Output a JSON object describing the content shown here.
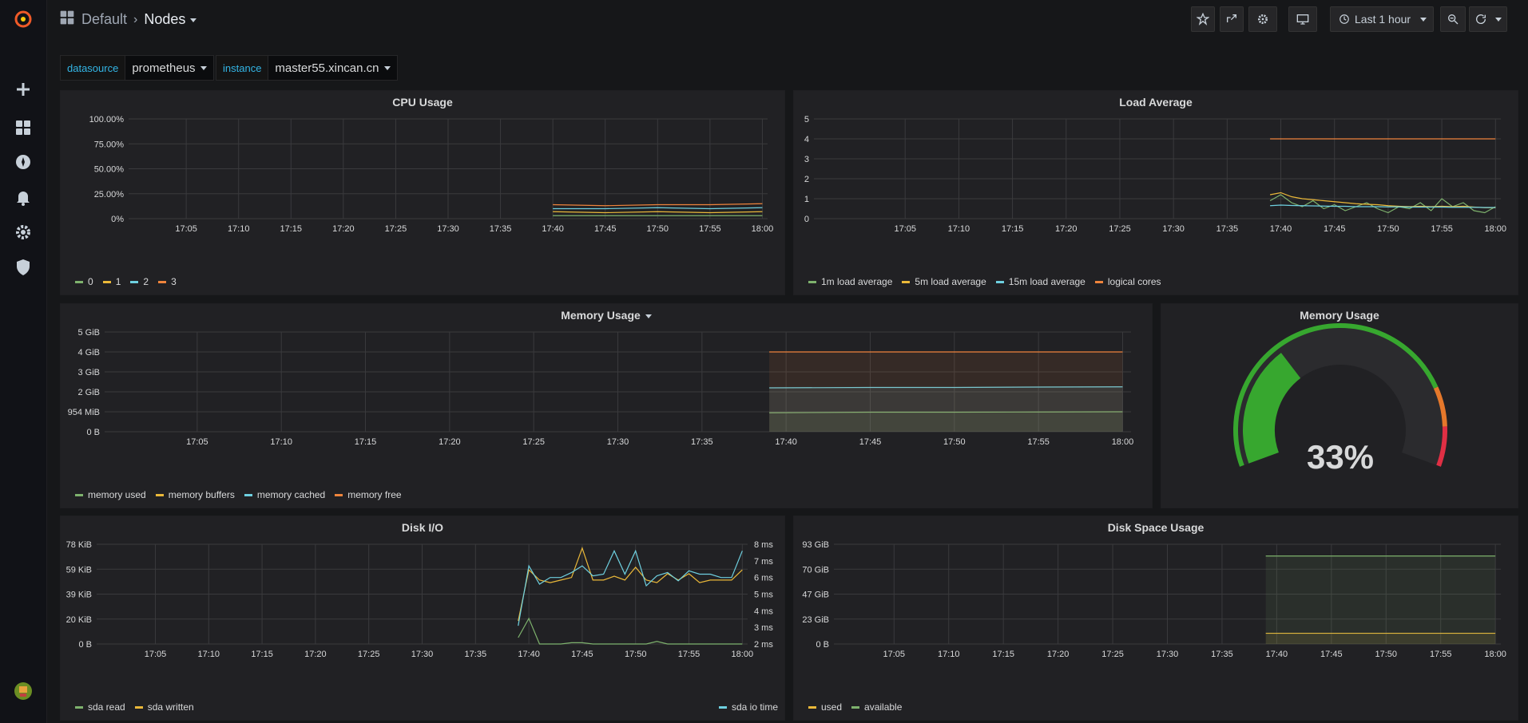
{
  "breadcrumb": {
    "folder": "Default",
    "dashboard": "Nodes"
  },
  "toolbar": {
    "time_range": "Last 1 hour"
  },
  "variables": [
    {
      "label": "datasource",
      "value": "prometheus"
    },
    {
      "label": "instance",
      "value": "master55.xincan.cn"
    }
  ],
  "colors": {
    "green": "#7eb26d",
    "yellow": "#eab839",
    "blue": "#6ed0e0",
    "orange": "#ef843c",
    "gauge_green": "#37a72f",
    "gauge_orange": "#e5782b",
    "gauge_red": "#e02f44"
  },
  "time_ticks": [
    "17:05",
    "17:10",
    "17:15",
    "17:20",
    "17:25",
    "17:30",
    "17:35",
    "17:40",
    "17:45",
    "17:50",
    "17:55",
    "18:00"
  ],
  "panels": {
    "cpu": {
      "title": "CPU Usage",
      "y_ticks": [
        "100.00%",
        "75.00%",
        "50.00%",
        "25.00%",
        "0%"
      ],
      "legend": [
        {
          "name": "0",
          "color": "#7eb26d"
        },
        {
          "name": "1",
          "color": "#eab839"
        },
        {
          "name": "2",
          "color": "#6ed0e0"
        },
        {
          "name": "3",
          "color": "#ef843c"
        }
      ]
    },
    "load": {
      "title": "Load Average",
      "y_ticks": [
        "5",
        "4",
        "3",
        "2",
        "1",
        "0"
      ],
      "legend": [
        {
          "name": "1m load average",
          "color": "#7eb26d"
        },
        {
          "name": "5m load average",
          "color": "#eab839"
        },
        {
          "name": "15m load average",
          "color": "#6ed0e0"
        },
        {
          "name": "logical cores",
          "color": "#ef843c"
        }
      ]
    },
    "memory": {
      "title": "Memory Usage",
      "y_ticks": [
        "5 GiB",
        "4 GiB",
        "3 GiB",
        "2 GiB",
        "954 MiB",
        "0 B"
      ],
      "legend": [
        {
          "name": "memory used",
          "color": "#7eb26d"
        },
        {
          "name": "memory buffers",
          "color": "#eab839"
        },
        {
          "name": "memory cached",
          "color": "#6ed0e0"
        },
        {
          "name": "memory free",
          "color": "#ef843c"
        }
      ]
    },
    "gauge": {
      "title": "Memory Usage",
      "value": "33%",
      "fraction": 0.33
    },
    "disk_io": {
      "title": "Disk I/O",
      "y_ticks": [
        "78 KiB",
        "59 KiB",
        "39 KiB",
        "20 KiB",
        "0 B"
      ],
      "y2_ticks": [
        "8 ms",
        "7 ms",
        "6 ms",
        "5 ms",
        "4 ms",
        "3 ms",
        "2 ms"
      ],
      "legend": [
        {
          "name": "sda read",
          "color": "#7eb26d"
        },
        {
          "name": "sda written",
          "color": "#eab839"
        }
      ],
      "legend_right": {
        "name": "sda io time",
        "color": "#6ed0e0"
      }
    },
    "disk_space": {
      "title": "Disk Space Usage",
      "y_ticks": [
        "93 GiB",
        "70 GiB",
        "47 GiB",
        "23 GiB",
        "0 B"
      ],
      "legend": [
        {
          "name": "used",
          "color": "#eab839"
        },
        {
          "name": "available",
          "color": "#7eb26d"
        }
      ]
    }
  },
  "chart_data": [
    {
      "type": "line",
      "title": "CPU Usage",
      "ylim": [
        0,
        100
      ],
      "x": [
        "17:40",
        "17:45",
        "17:50",
        "17:55",
        "18:00"
      ],
      "series": [
        {
          "name": "0",
          "values": [
            3,
            3,
            3,
            3,
            3
          ]
        },
        {
          "name": "1",
          "values": [
            7,
            6,
            7,
            6,
            7
          ]
        },
        {
          "name": "2",
          "values": [
            10,
            10,
            11,
            10,
            11
          ]
        },
        {
          "name": "3",
          "values": [
            14,
            13,
            14,
            14,
            15
          ]
        }
      ]
    },
    {
      "type": "line",
      "title": "Load Average",
      "ylim": [
        0,
        5
      ],
      "x": [
        "17:39",
        "17:40",
        "17:41",
        "17:42",
        "17:43",
        "17:44",
        "17:45",
        "17:46",
        "17:47",
        "17:48",
        "17:49",
        "17:50",
        "17:51",
        "17:52",
        "17:53",
        "17:54",
        "17:55",
        "17:56",
        "17:57",
        "17:58",
        "17:59",
        "18:00"
      ],
      "series": [
        {
          "name": "1m load average",
          "values": [
            0.9,
            1.2,
            0.8,
            0.6,
            0.9,
            0.5,
            0.7,
            0.4,
            0.6,
            0.8,
            0.5,
            0.3,
            0.6,
            0.5,
            0.8,
            0.4,
            1.0,
            0.6,
            0.8,
            0.4,
            0.3,
            0.6
          ]
        },
        {
          "name": "5m load average",
          "values": [
            1.2,
            1.3,
            1.1,
            1.0,
            0.95,
            0.9,
            0.85,
            0.8,
            0.75,
            0.72,
            0.7,
            0.65,
            0.62,
            0.6,
            0.62,
            0.6,
            0.62,
            0.6,
            0.62,
            0.58,
            0.55,
            0.55
          ]
        },
        {
          "name": "15m load average",
          "values": [
            0.65,
            0.68,
            0.66,
            0.65,
            0.64,
            0.63,
            0.62,
            0.62,
            0.6,
            0.6,
            0.6,
            0.59,
            0.59,
            0.58,
            0.58,
            0.58,
            0.58,
            0.57,
            0.57,
            0.57,
            0.56,
            0.56
          ]
        },
        {
          "name": "logical cores",
          "values": [
            4,
            4,
            4,
            4,
            4,
            4,
            4,
            4,
            4,
            4,
            4,
            4,
            4,
            4,
            4,
            4,
            4,
            4,
            4,
            4,
            4,
            4
          ]
        }
      ]
    },
    {
      "type": "area",
      "title": "Memory Usage",
      "ylim_gib": [
        0,
        5
      ],
      "x": [
        "17:39",
        "17:45",
        "17:50",
        "17:55",
        "18:00"
      ],
      "series": [
        {
          "name": "memory used",
          "values_gib": [
            0.95,
            0.98,
            0.98,
            0.99,
            1.0
          ]
        },
        {
          "name": "memory cached",
          "values_gib": [
            2.2,
            2.22,
            2.22,
            2.24,
            2.25
          ]
        },
        {
          "name": "memory free",
          "values_gib": [
            4,
            4,
            4,
            4,
            4
          ]
        }
      ]
    },
    {
      "type": "line",
      "title": "Disk I/O",
      "ylim_kib": [
        0,
        78
      ],
      "y2lim_ms": [
        2,
        8
      ],
      "x": [
        "17:39",
        "17:40",
        "17:41",
        "17:42",
        "17:43",
        "17:44",
        "17:45",
        "17:46",
        "17:47",
        "17:48",
        "17:49",
        "17:50",
        "17:51",
        "17:52",
        "17:53",
        "17:54",
        "17:55",
        "17:56",
        "17:57",
        "17:58",
        "17:59",
        "18:00"
      ],
      "series": [
        {
          "name": "sda read",
          "values_kib": [
            5,
            20,
            0,
            0,
            0,
            1,
            1,
            0,
            0,
            0,
            0,
            0,
            0,
            2,
            0,
            0,
            0,
            0,
            0,
            0,
            0,
            0
          ]
        },
        {
          "name": "sda written",
          "values_kib": [
            18,
            58,
            50,
            48,
            50,
            52,
            75,
            50,
            50,
            53,
            50,
            60,
            50,
            48,
            55,
            50,
            55,
            48,
            50,
            50,
            50,
            58
          ]
        },
        {
          "name": "sda io time",
          "values_ms": [
            3.1,
            6.7,
            5.6,
            6.0,
            6.0,
            6.3,
            6.7,
            6.1,
            6.2,
            7.6,
            6.2,
            7.6,
            5.5,
            6.1,
            6.3,
            5.8,
            6.4,
            6.2,
            6.2,
            6.0,
            6.0,
            7.6
          ]
        }
      ]
    },
    {
      "type": "area",
      "title": "Disk Space Usage",
      "ylim_gib": [
        0,
        93
      ],
      "x": [
        "17:39",
        "17:45",
        "17:50",
        "17:55",
        "18:00"
      ],
      "series": [
        {
          "name": "used",
          "values_gib": [
            10,
            10,
            10,
            10,
            10
          ]
        },
        {
          "name": "available",
          "values_gib": [
            82,
            82,
            82,
            82,
            82
          ]
        }
      ]
    }
  ]
}
